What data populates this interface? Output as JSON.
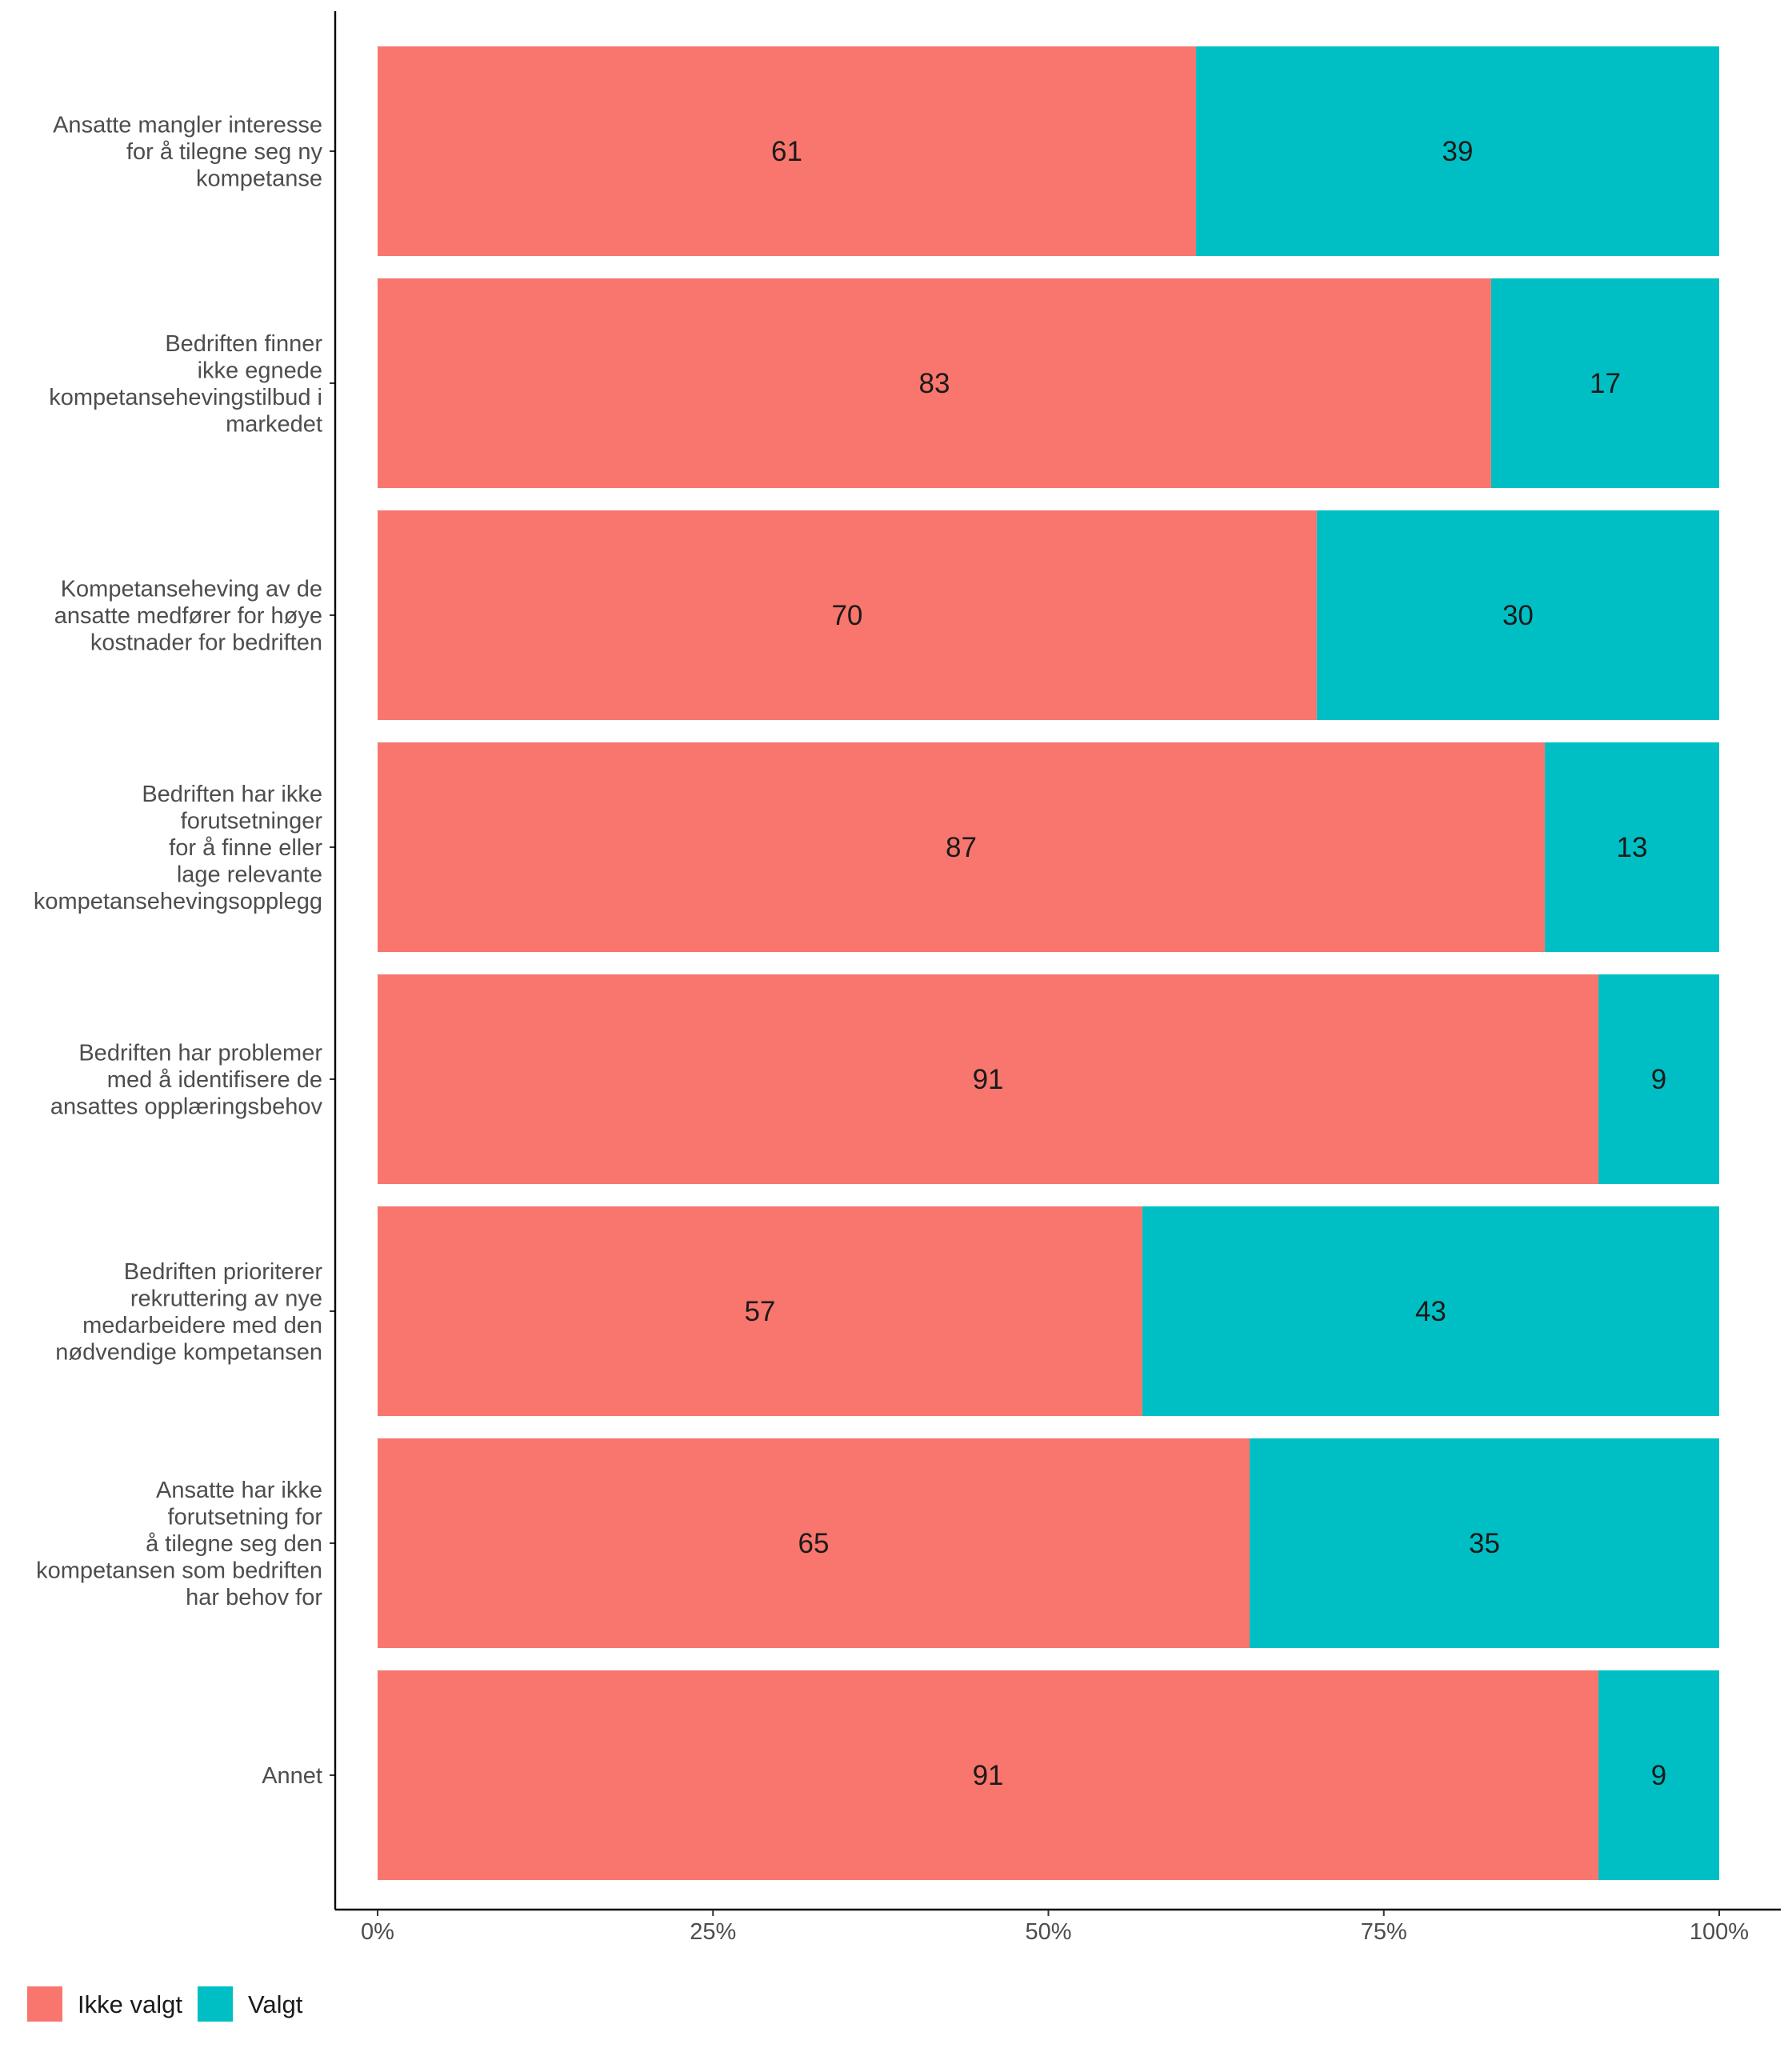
{
  "chart_data": {
    "type": "bar",
    "orientation": "horizontal",
    "stacked": true,
    "percent": true,
    "categories": [
      [
        "Ansatte mangler interesse",
        "for å tilegne seg ny",
        "kompetanse"
      ],
      [
        "Bedriften finner",
        "ikke egnede",
        "kompetansehevingstilbud i",
        "markedet"
      ],
      [
        "Kompetanseheving av de",
        "ansatte medfører for høye",
        "kostnader for bedriften"
      ],
      [
        "Bedriften har ikke",
        "forutsetninger",
        "for å finne eller",
        "lage relevante",
        "kompetansehevingsopplegg"
      ],
      [
        "Bedriften har problemer",
        "med å identifisere de",
        "ansattes opplæringsbehov"
      ],
      [
        "Bedriften prioriterer",
        "rekruttering av nye",
        "medarbeidere med den",
        "nødvendige kompetansen"
      ],
      [
        "Ansatte har ikke",
        "forutsetning for",
        "å tilegne seg den",
        "kompetansen som bedriften",
        "har behov for"
      ],
      [
        "Annet"
      ]
    ],
    "series": [
      {
        "name": "Ikke valgt",
        "color": "#F8766D",
        "values": [
          61,
          83,
          70,
          87,
          91,
          57,
          65,
          91
        ]
      },
      {
        "name": "Valgt",
        "color": "#00BFC4",
        "values": [
          39,
          17,
          30,
          13,
          9,
          43,
          35,
          9
        ]
      }
    ],
    "xticks": [
      "0%",
      "25%",
      "50%",
      "75%",
      "100%"
    ],
    "xlim": [
      0,
      100
    ],
    "legend_position": "bottom-left",
    "grid": false
  }
}
